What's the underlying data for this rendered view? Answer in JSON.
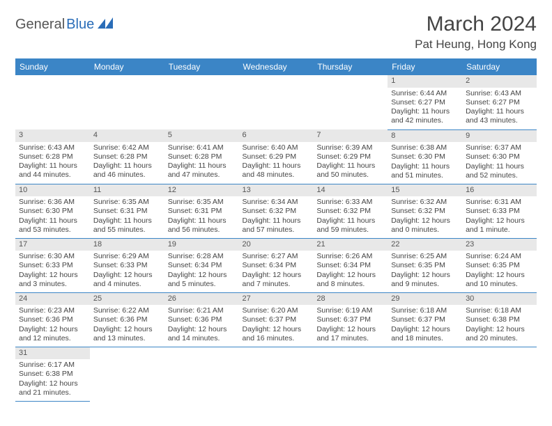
{
  "logo": {
    "part1": "General",
    "part2": "Blue"
  },
  "title": "March 2024",
  "location": "Pat Heung, Hong Kong",
  "colors": {
    "header_bg": "#3b85c6",
    "header_text": "#ffffff",
    "daynum_bg": "#e8e8e8",
    "border": "#3b85c6",
    "text": "#444444",
    "logo_blue": "#2a6db8"
  },
  "weekdays": [
    "Sunday",
    "Monday",
    "Tuesday",
    "Wednesday",
    "Thursday",
    "Friday",
    "Saturday"
  ],
  "weeks": [
    [
      null,
      null,
      null,
      null,
      null,
      {
        "n": "1",
        "sunrise": "6:44 AM",
        "sunset": "6:27 PM",
        "day_h": "11",
        "day_m": "42"
      },
      {
        "n": "2",
        "sunrise": "6:43 AM",
        "sunset": "6:27 PM",
        "day_h": "11",
        "day_m": "43"
      }
    ],
    [
      {
        "n": "3",
        "sunrise": "6:43 AM",
        "sunset": "6:28 PM",
        "day_h": "11",
        "day_m": "44"
      },
      {
        "n": "4",
        "sunrise": "6:42 AM",
        "sunset": "6:28 PM",
        "day_h": "11",
        "day_m": "46"
      },
      {
        "n": "5",
        "sunrise": "6:41 AM",
        "sunset": "6:28 PM",
        "day_h": "11",
        "day_m": "47"
      },
      {
        "n": "6",
        "sunrise": "6:40 AM",
        "sunset": "6:29 PM",
        "day_h": "11",
        "day_m": "48"
      },
      {
        "n": "7",
        "sunrise": "6:39 AM",
        "sunset": "6:29 PM",
        "day_h": "11",
        "day_m": "50"
      },
      {
        "n": "8",
        "sunrise": "6:38 AM",
        "sunset": "6:30 PM",
        "day_h": "11",
        "day_m": "51"
      },
      {
        "n": "9",
        "sunrise": "6:37 AM",
        "sunset": "6:30 PM",
        "day_h": "11",
        "day_m": "52"
      }
    ],
    [
      {
        "n": "10",
        "sunrise": "6:36 AM",
        "sunset": "6:30 PM",
        "day_h": "11",
        "day_m": "53"
      },
      {
        "n": "11",
        "sunrise": "6:35 AM",
        "sunset": "6:31 PM",
        "day_h": "11",
        "day_m": "55"
      },
      {
        "n": "12",
        "sunrise": "6:35 AM",
        "sunset": "6:31 PM",
        "day_h": "11",
        "day_m": "56"
      },
      {
        "n": "13",
        "sunrise": "6:34 AM",
        "sunset": "6:32 PM",
        "day_h": "11",
        "day_m": "57"
      },
      {
        "n": "14",
        "sunrise": "6:33 AM",
        "sunset": "6:32 PM",
        "day_h": "11",
        "day_m": "59"
      },
      {
        "n": "15",
        "sunrise": "6:32 AM",
        "sunset": "6:32 PM",
        "day_h": "12",
        "day_m": "0"
      },
      {
        "n": "16",
        "sunrise": "6:31 AM",
        "sunset": "6:33 PM",
        "day_h": "12",
        "day_m": "1"
      }
    ],
    [
      {
        "n": "17",
        "sunrise": "6:30 AM",
        "sunset": "6:33 PM",
        "day_h": "12",
        "day_m": "3"
      },
      {
        "n": "18",
        "sunrise": "6:29 AM",
        "sunset": "6:33 PM",
        "day_h": "12",
        "day_m": "4"
      },
      {
        "n": "19",
        "sunrise": "6:28 AM",
        "sunset": "6:34 PM",
        "day_h": "12",
        "day_m": "5"
      },
      {
        "n": "20",
        "sunrise": "6:27 AM",
        "sunset": "6:34 PM",
        "day_h": "12",
        "day_m": "7"
      },
      {
        "n": "21",
        "sunrise": "6:26 AM",
        "sunset": "6:34 PM",
        "day_h": "12",
        "day_m": "8"
      },
      {
        "n": "22",
        "sunrise": "6:25 AM",
        "sunset": "6:35 PM",
        "day_h": "12",
        "day_m": "9"
      },
      {
        "n": "23",
        "sunrise": "6:24 AM",
        "sunset": "6:35 PM",
        "day_h": "12",
        "day_m": "10"
      }
    ],
    [
      {
        "n": "24",
        "sunrise": "6:23 AM",
        "sunset": "6:36 PM",
        "day_h": "12",
        "day_m": "12"
      },
      {
        "n": "25",
        "sunrise": "6:22 AM",
        "sunset": "6:36 PM",
        "day_h": "12",
        "day_m": "13"
      },
      {
        "n": "26",
        "sunrise": "6:21 AM",
        "sunset": "6:36 PM",
        "day_h": "12",
        "day_m": "14"
      },
      {
        "n": "27",
        "sunrise": "6:20 AM",
        "sunset": "6:37 PM",
        "day_h": "12",
        "day_m": "16"
      },
      {
        "n": "28",
        "sunrise": "6:19 AM",
        "sunset": "6:37 PM",
        "day_h": "12",
        "day_m": "17"
      },
      {
        "n": "29",
        "sunrise": "6:18 AM",
        "sunset": "6:37 PM",
        "day_h": "12",
        "day_m": "18"
      },
      {
        "n": "30",
        "sunrise": "6:18 AM",
        "sunset": "6:38 PM",
        "day_h": "12",
        "day_m": "20"
      }
    ],
    [
      {
        "n": "31",
        "sunrise": "6:17 AM",
        "sunset": "6:38 PM",
        "day_h": "12",
        "day_m": "21"
      },
      null,
      null,
      null,
      null,
      null,
      null
    ]
  ]
}
